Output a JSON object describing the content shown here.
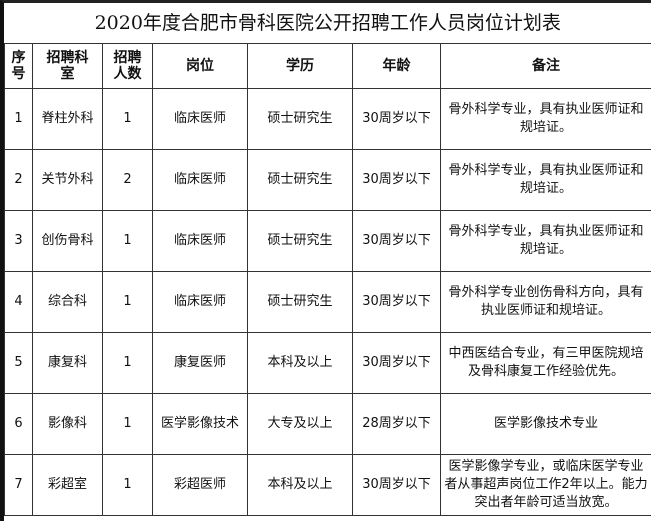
{
  "title": "2020年度合肥市骨科医院公开招聘工作人员岗位计划表",
  "headers": [
    "序号",
    "招聘科室",
    "招聘人数",
    "岗位",
    "学历",
    "年龄",
    "备注"
  ],
  "header_lines": {
    "seq": [
      "序",
      "号"
    ],
    "dept": [
      "招聘科",
      "室"
    ],
    "count": [
      "招聘",
      "人数"
    ]
  },
  "rows": [
    {
      "seq": "1",
      "dept": "脊柱外科",
      "count": "1",
      "post": "临床医师",
      "edu": "硕士研究生",
      "age": "30周岁以下",
      "note": "骨外科学专业，具有执业医师证和规培证。"
    },
    {
      "seq": "2",
      "dept": "关节外科",
      "count": "2",
      "post": "临床医师",
      "edu": "硕士研究生",
      "age": "30周岁以下",
      "note": "骨外科学专业，具有执业医师证和规培证。"
    },
    {
      "seq": "3",
      "dept": "创伤骨科",
      "count": "1",
      "post": "临床医师",
      "edu": "硕士研究生",
      "age": "30周岁以下",
      "note": "骨外科学专业，具有执业医师证和规培证。"
    },
    {
      "seq": "4",
      "dept": "综合科",
      "count": "1",
      "post": "临床医师",
      "edu": "硕士研究生",
      "age": "30周岁以下",
      "note": "骨外科学专业创伤骨科方向，具有执业医师证和规培证。"
    },
    {
      "seq": "5",
      "dept": "康复科",
      "count": "1",
      "post": "康复医师",
      "edu": "本科及以上",
      "age": "30周岁以下",
      "note": "中西医结合专业，有三甲医院规培及骨科康复工作经验优先。"
    },
    {
      "seq": "6",
      "dept": "影像科",
      "count": "1",
      "post": "医学影像技术",
      "edu": "大专及以上",
      "age": "28周岁以下",
      "note": "医学影像技术专业"
    },
    {
      "seq": "7",
      "dept": "彩超室",
      "count": "1",
      "post": "彩超医师",
      "edu": "本科及以上",
      "age": "30周岁以下",
      "note": "医学影像学专业，或临床医学专业者从事超声岗位工作2年以上。能力突出者年龄可适当放宽。"
    }
  ]
}
